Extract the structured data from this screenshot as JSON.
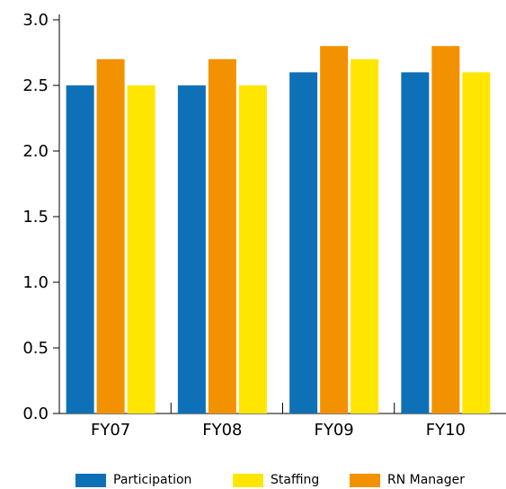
{
  "chart_data": {
    "type": "bar",
    "categories": [
      "FY07",
      "FY08",
      "FY09",
      "FY10"
    ],
    "series": [
      {
        "name": "Participation",
        "color": "#0e71b8",
        "values": [
          2.5,
          2.5,
          2.6,
          2.6
        ]
      },
      {
        "name": "RN Manager",
        "color": "#f39200",
        "values": [
          2.7,
          2.7,
          2.8,
          2.8
        ]
      },
      {
        "name": "Staffing",
        "color": "#ffe600",
        "values": [
          2.5,
          2.5,
          2.7,
          2.6
        ]
      }
    ],
    "ylim": [
      0,
      3.0
    ],
    "yticks": [
      "0.0",
      "0.5",
      "1.0",
      "1.5",
      "2.0",
      "2.5",
      "3.0"
    ],
    "grid": false,
    "legend_position": "bottom",
    "legend_order": [
      "Participation",
      "Staffing",
      "RN Manager"
    ]
  }
}
